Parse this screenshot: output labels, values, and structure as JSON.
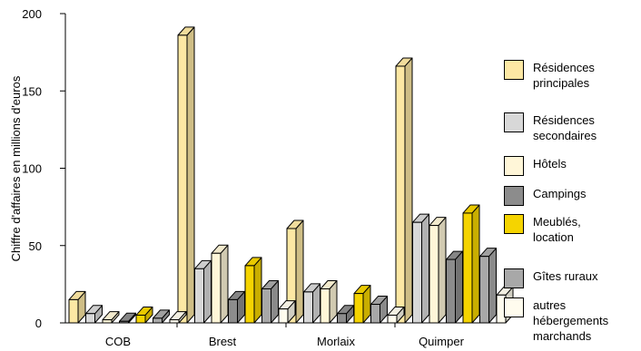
{
  "chart_data": {
    "type": "bar",
    "title": "",
    "xlabel": "",
    "ylabel": "Chiffre d'affaires en millions d'euros",
    "ylim": [
      0,
      200
    ],
    "yticks": [
      0,
      50,
      100,
      150,
      200
    ],
    "categories": [
      "COB",
      "Brest",
      "Morlaix",
      "Quimper"
    ],
    "series": [
      {
        "name": "Résidences principales",
        "color": "#fde8a4",
        "values": [
          15,
          186,
          61,
          166
        ]
      },
      {
        "name": "Résidences secondaires",
        "color": "#d8d8d8",
        "values": [
          6,
          35,
          20,
          65
        ]
      },
      {
        "name": "Hôtels",
        "color": "#fff6d8",
        "values": [
          2,
          45,
          22,
          63
        ]
      },
      {
        "name": "Campings",
        "color": "#8c8c8c",
        "values": [
          1,
          15,
          6,
          41
        ]
      },
      {
        "name": "Meublés, location",
        "color": "#f5d400",
        "values": [
          5,
          37,
          19,
          71
        ]
      },
      {
        "name": "Gîtes ruraux",
        "color": "#a8a8a8",
        "values": [
          3,
          22,
          12,
          43
        ]
      },
      {
        "name": "autres hébergements marchands",
        "color": "#fffcee",
        "values": [
          2,
          9,
          5,
          18
        ]
      }
    ],
    "legend_labels": [
      "Résidences\nprincipales",
      "Résidences\nsecondaires",
      "Hôtels",
      "Campings",
      "Meublés,\nlocation",
      "Gîtes ruraux",
      "autres\nhébergements\nmarchands"
    ],
    "grid": false,
    "legend_position": "right",
    "style": "3d-bar"
  }
}
